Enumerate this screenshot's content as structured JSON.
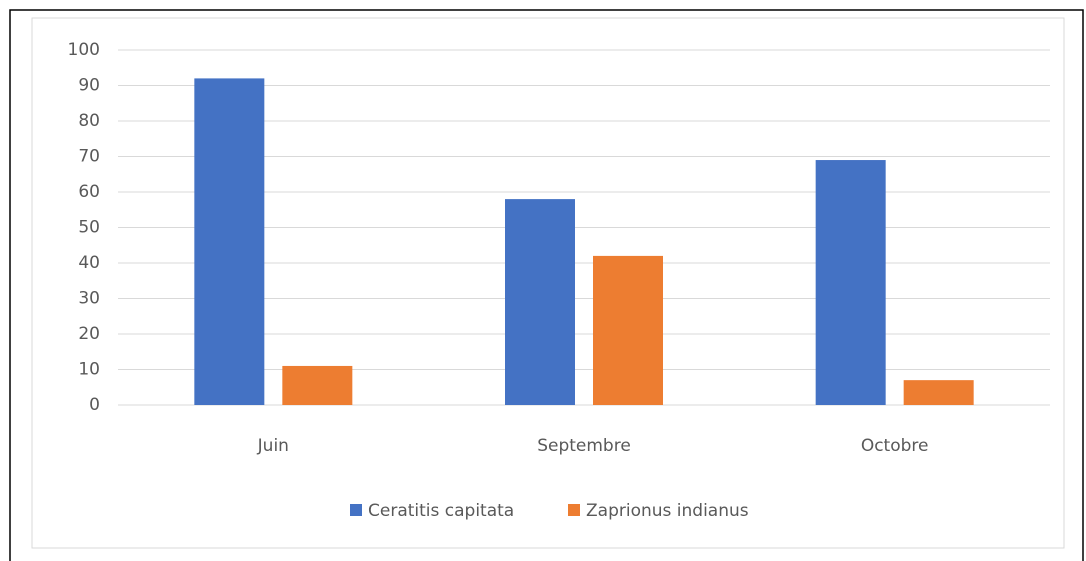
{
  "chart_data": {
    "type": "bar",
    "categories": [
      "Juin",
      "Septembre",
      "Octobre"
    ],
    "series": [
      {
        "name": "Ceratitis capitata",
        "color": "#4472c4",
        "values": [
          92,
          58,
          69
        ]
      },
      {
        "name": "Zaprionus indianus",
        "color": "#ed7d31",
        "values": [
          11,
          42,
          7
        ]
      }
    ],
    "ylim": [
      0,
      100
    ],
    "yticks": [
      0,
      10,
      20,
      30,
      40,
      50,
      60,
      70,
      80,
      90,
      100
    ],
    "grid": true,
    "legend": "bottom"
  }
}
